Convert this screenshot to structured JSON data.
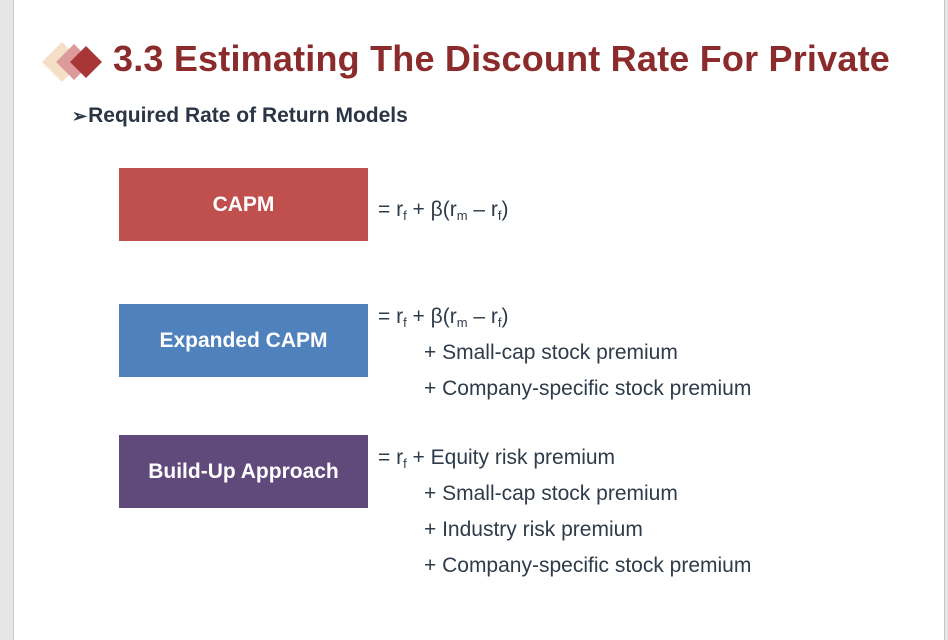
{
  "slide": {
    "title": "3.3 Estimating The Discount Rate For Private",
    "subtitle_bullet": "➢",
    "subtitle": "Required Rate of Return Models",
    "colors": {
      "title": "#8b2b2b",
      "capm": "#c0504d",
      "expanded": "#4f81bd",
      "buildup": "#604a7b"
    },
    "logo_icon": "diamonds-icon",
    "models": [
      {
        "label": "CAPM",
        "formula": {
          "eq": "= r",
          "f1": "f",
          "mid": " + β(r",
          "m": "m",
          "minus": " – r",
          "f2": "f",
          "end": ")"
        },
        "terms": []
      },
      {
        "label": "Expanded CAPM",
        "formula": {
          "eq": "= r",
          "f1": "f",
          "mid": " + β(r",
          "m": "m",
          "minus": " – r",
          "f2": "f",
          "end": ")"
        },
        "terms": [
          "+ Small-cap stock premium",
          "+ Company-specific stock premium"
        ]
      },
      {
        "label": "Build-Up Approach",
        "formula": {
          "eq": "= r",
          "f1": "f",
          "mid": " + Equity risk premium"
        },
        "terms": [
          "+ Small-cap stock premium",
          "+ Industry risk premium",
          "+ Company-specific stock premium"
        ]
      }
    ]
  }
}
